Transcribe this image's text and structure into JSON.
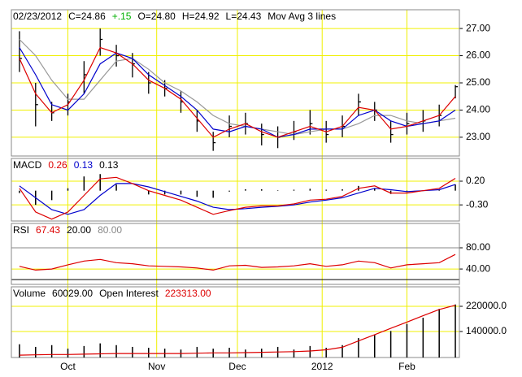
{
  "chart_data": {
    "type": "stock",
    "x": [
      2,
      6,
      10,
      14,
      18,
      22,
      26,
      30,
      34,
      38,
      42,
      46,
      50,
      54,
      58,
      62,
      66,
      70,
      74,
      78,
      82,
      86,
      90,
      94,
      98,
      102,
      106,
      110
    ],
    "xlim": [
      0,
      111
    ],
    "xticks": [
      {
        "value": 14,
        "label": "Oct"
      },
      {
        "value": 36,
        "label": "Nov"
      },
      {
        "value": 56,
        "label": "Dec"
      },
      {
        "value": 77,
        "label": "2012"
      },
      {
        "value": 98,
        "label": "Feb"
      }
    ],
    "grid": true,
    "panels": [
      {
        "legend": [
          {
            "text": "02/23/2012",
            "color": "#000000"
          },
          {
            "text": "C=24.86",
            "color": "#000000"
          },
          {
            "text": "+.15",
            "color": "#00b000"
          },
          {
            "text": "O=24.80",
            "color": "#000000"
          },
          {
            "text": "H=24.92",
            "color": "#000000"
          },
          {
            "text": "L=24.43",
            "color": "#000000"
          },
          {
            "text": "Mov Avg 3 lines",
            "color": "#000000"
          }
        ],
        "ylim": [
          22.31,
          27.69
        ],
        "yticks": [
          {
            "value": 27,
            "label": "27.00"
          },
          {
            "value": 26,
            "label": "26.00"
          },
          {
            "value": 25,
            "label": "25.00"
          },
          {
            "value": 24,
            "label": "24.00"
          },
          {
            "value": 23,
            "label": "23.00"
          }
        ],
        "series": [
          {
            "type": "ohlc",
            "color": "#000000",
            "high": [
              26.9,
              25.0,
              24.3,
              24.6,
              25.8,
              27.0,
              26.4,
              26.1,
              25.4,
              25.1,
              24.7,
              24.0,
              23.2,
              23.8,
              23.9,
              23.5,
              23.4,
              23.6,
              24.0,
              23.6,
              23.8,
              24.6,
              24.3,
              23.6,
              23.9,
              24.0,
              24.2,
              24.92
            ],
            "low": [
              25.4,
              23.4,
              23.6,
              23.8,
              24.6,
              26.0,
              25.6,
              25.2,
              24.6,
              24.5,
              23.9,
              23.2,
              22.5,
              23.0,
              23.1,
              22.7,
              22.6,
              22.9,
              23.1,
              22.8,
              23.0,
              23.8,
              23.6,
              22.8,
              23.1,
              23.2,
              23.4,
              24.43
            ],
            "close": [
              25.9,
              24.2,
              23.9,
              24.3,
              25.3,
              26.6,
              26.0,
              25.7,
              25.0,
              24.8,
              24.3,
              23.6,
              22.8,
              23.4,
              23.5,
              23.1,
              23.0,
              23.2,
              23.5,
              23.1,
              23.4,
              24.3,
              24.0,
              23.1,
              23.5,
              23.6,
              23.8,
              24.86
            ]
          },
          {
            "type": "line",
            "color": "#999999",
            "values": [
              26.6,
              26.0,
              25.1,
              24.4,
              24.4,
              25.1,
              25.8,
              25.9,
              25.5,
              25.0,
              24.7,
              24.3,
              23.8,
              23.5,
              23.4,
              23.3,
              23.2,
              23.1,
              23.2,
              23.3,
              23.3,
              23.5,
              23.8,
              23.8,
              23.6,
              23.5,
              23.6,
              23.7
            ]
          },
          {
            "type": "line",
            "color": "#0000cc",
            "values": [
              26.3,
              25.3,
              24.2,
              24.0,
              24.6,
              25.7,
              26.1,
              25.9,
              25.3,
              24.9,
              24.5,
              24.0,
              23.3,
              23.2,
              23.4,
              23.3,
              23.0,
              23.1,
              23.3,
              23.3,
              23.3,
              23.8,
              24.0,
              23.6,
              23.4,
              23.5,
              23.6,
              24.0
            ]
          },
          {
            "type": "line",
            "color": "#dd0000",
            "values": [
              25.9,
              24.6,
              23.9,
              24.2,
              25.1,
              26.3,
              26.1,
              25.7,
              25.1,
              24.8,
              24.4,
              23.7,
              23.0,
              23.3,
              23.5,
              23.2,
              23.0,
              23.2,
              23.4,
              23.2,
              23.4,
              24.1,
              24.0,
              23.3,
              23.4,
              23.6,
              23.8,
              24.5
            ]
          }
        ]
      },
      {
        "legend": [
          {
            "text": "MACD",
            "color": "#000000"
          },
          {
            "text": "0.26",
            "color": "#dd0000"
          },
          {
            "text": "0.13",
            "color": "#0000cc"
          },
          {
            "text": "0.13",
            "color": "#000000"
          }
        ],
        "ylim": [
          -0.64,
          0.68
        ],
        "yticks": [
          {
            "value": 0.2,
            "label": "0.20"
          },
          {
            "value": -0.3,
            "label": "-0.30"
          }
        ],
        "series": [
          {
            "type": "histogram",
            "color": "#000000",
            "values": [
              -0.05,
              -0.3,
              -0.2,
              0.05,
              0.3,
              0.35,
              0.13,
              0,
              -0.08,
              -0.08,
              -0.08,
              -0.13,
              -0.15,
              -0.02,
              0.03,
              0.03,
              0.01,
              0.02,
              0.04,
              0.02,
              0.03,
              0.1,
              0.05,
              -0.07,
              -0.03,
              0,
              0.03,
              0.13
            ]
          },
          {
            "type": "line",
            "color": "#0000cc",
            "values": [
              0.1,
              -0.15,
              -0.4,
              -0.5,
              -0.4,
              -0.1,
              0.15,
              0.15,
              0.08,
              -0.02,
              -0.12,
              -0.22,
              -0.35,
              -0.4,
              -0.38,
              -0.35,
              -0.33,
              -0.3,
              -0.24,
              -0.2,
              -0.15,
              -0.05,
              0.05,
              0.02,
              -0.02,
              0,
              0.02,
              0.13
            ]
          },
          {
            "type": "line",
            "color": "#dd0000",
            "values": [
              0.05,
              -0.45,
              -0.6,
              -0.45,
              -0.1,
              0.25,
              0.28,
              0.15,
              0,
              -0.1,
              -0.2,
              -0.35,
              -0.5,
              -0.42,
              -0.35,
              -0.32,
              -0.32,
              -0.28,
              -0.2,
              -0.18,
              -0.12,
              0.05,
              0.1,
              -0.05,
              -0.05,
              0,
              0.05,
              0.26
            ]
          }
        ]
      },
      {
        "legend": [
          {
            "text": "RSI",
            "color": "#000000"
          },
          {
            "text": "67.43",
            "color": "#dd0000"
          },
          {
            "text": "20.00",
            "color": "#000000"
          },
          {
            "text": "80.00",
            "color": "#888888"
          }
        ],
        "ylim": [
          11,
          126
        ],
        "yticks": [
          {
            "value": 80,
            "label": "80.00"
          },
          {
            "value": 40,
            "label": "40.00"
          }
        ],
        "hlines": [
          {
            "value": 80,
            "color": "#888888"
          },
          {
            "value": 20,
            "color": "#000000"
          }
        ],
        "series": [
          {
            "type": "line",
            "color": "#dd0000",
            "values": [
              45,
              38,
              40,
              48,
              55,
              58,
              52,
              50,
              46,
              45,
              44,
              42,
              38,
              46,
              47,
              43,
              44,
              46,
              50,
              45,
              48,
              55,
              52,
              42,
              48,
              50,
              52,
              67.43
            ]
          }
        ]
      },
      {
        "legend": [
          {
            "text": "Volume",
            "color": "#000000"
          },
          {
            "text": "60029.00",
            "color": "#000000"
          },
          {
            "text": "Open Interest",
            "color": "#000000"
          },
          {
            "text": "223313.00",
            "color": "#dd0000"
          }
        ],
        "ylim": [
          57400,
          281900
        ],
        "y2lim": [
          0,
          80000
        ],
        "yticks": [
          {
            "value": 220000,
            "label": "220000.0"
          },
          {
            "value": 140000,
            "label": "140000.0"
          }
        ],
        "series": [
          {
            "type": "histogram",
            "axis": "y2",
            "color": "#000000",
            "values": [
              15000,
              12000,
              14000,
              10000,
              13000,
              16000,
              14000,
              12000,
              11000,
              10000,
              9000,
              12000,
              10000,
              11000,
              9000,
              10000,
              12000,
              9000,
              13000,
              11000,
              14000,
              22000,
              26000,
              30000,
              38000,
              45000,
              55000,
              60029
            ]
          },
          {
            "type": "line",
            "color": "#dd0000",
            "values": [
              65000,
              66000,
              67000,
              67000,
              68000,
              69000,
              70000,
              70000,
              70000,
              70000,
              70000,
              71000,
              72000,
              72000,
              73000,
              74000,
              75000,
              76000,
              78000,
              82000,
              90000,
              110000,
              130000,
              150000,
              170000,
              190000,
              210000,
              223313
            ]
          }
        ]
      }
    ]
  }
}
